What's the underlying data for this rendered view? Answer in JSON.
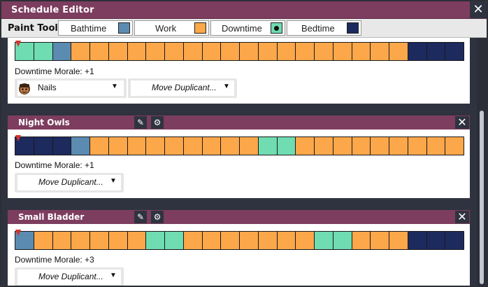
{
  "window": {
    "title": "Schedule Editor",
    "close_glyph": "✕"
  },
  "paint_tools": {
    "label": "Paint Tools:",
    "tools": [
      {
        "name": "Bathtime",
        "color": "#5b8bb1"
      },
      {
        "name": "Work",
        "color": "#fba74a"
      },
      {
        "name": "Downtime",
        "color": "#6fdcb1"
      },
      {
        "name": "Bedtime",
        "color": "#1d2a5e"
      }
    ]
  },
  "block_colors": {
    "B": "#5b8bb1",
    "W": "#fba74a",
    "D": "#6fdcb1",
    "S": "#1d2a5e"
  },
  "schedules": [
    {
      "name": "",
      "blocks": [
        "D",
        "D",
        "B",
        "W",
        "W",
        "W",
        "W",
        "W",
        "W",
        "W",
        "W",
        "W",
        "W",
        "W",
        "W",
        "W",
        "W",
        "W",
        "W",
        "W",
        "W",
        "S",
        "S",
        "S"
      ],
      "morale": "Downtime Morale: +1",
      "assigned": "Nails",
      "move_label": "Move Duplicant...",
      "caret": "▼"
    },
    {
      "name": "Night Owls",
      "blocks": [
        "S",
        "S",
        "S",
        "B",
        "W",
        "W",
        "W",
        "W",
        "W",
        "W",
        "W",
        "W",
        "W",
        "D",
        "D",
        "W",
        "W",
        "W",
        "W",
        "W",
        "W",
        "W",
        "W",
        "W"
      ],
      "morale": "Downtime Morale: +1",
      "move_label": "Move Duplicant...",
      "caret": "▼"
    },
    {
      "name": "Small Bladder",
      "blocks": [
        "B",
        "W",
        "W",
        "W",
        "W",
        "W",
        "W",
        "D",
        "D",
        "W",
        "W",
        "W",
        "W",
        "W",
        "W",
        "W",
        "D",
        "D",
        "W",
        "W",
        "W",
        "S",
        "S",
        "S"
      ],
      "morale": "Downtime Morale: +3",
      "move_label": "Move Duplicant...",
      "caret": "▼"
    }
  ],
  "icons": {
    "edit": "✎",
    "settings": "⚙",
    "close": "✕"
  }
}
